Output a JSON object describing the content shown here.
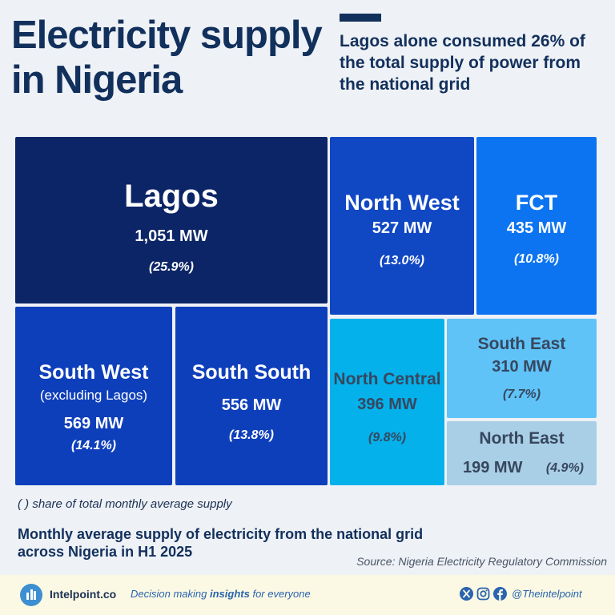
{
  "title_line1": "Electricity supply",
  "title_line2": "in Nigeria",
  "headline": "Lagos alone consumed 26% of the total supply of power from the national grid",
  "note": "( ) share of total monthly average supply",
  "subtitle_line1": "Monthly average supply of electricity from the national grid",
  "subtitle_line2": "across Nigeria in H1 2025",
  "source": "Source: Nigeria Electricity Regulatory Commission",
  "footer": {
    "brand": "Intelpoint.co",
    "tagline_pre": "Decision making ",
    "tagline_bold": "insights",
    "tagline_post": " for everyone",
    "handle": "@Theintelpoint"
  },
  "colors": {
    "title": "#12305c",
    "lagos": "#0b2566",
    "north_west": "#1047c3",
    "fct": "#0c74f1",
    "south_west": "#0e3fbb",
    "south_south": "#0e3fbb",
    "north_central": "#04b1eb",
    "south_east": "#5fc3f8",
    "north_east": "#a9cfe6"
  },
  "chart_data": {
    "type": "treemap",
    "unit": "MW",
    "items": [
      {
        "name": "Lagos",
        "value": 1051,
        "value_label": "1,051 MW",
        "share": "(25.9%)"
      },
      {
        "name": "North West",
        "value": 527,
        "value_label": "527 MW",
        "share": "(13.0%)"
      },
      {
        "name": "FCT",
        "value": 435,
        "value_label": "435 MW",
        "share": "(10.8%)"
      },
      {
        "name": "South West",
        "note": "(excluding Lagos)",
        "value": 569,
        "value_label": "569 MW",
        "share": "(14.1%)"
      },
      {
        "name": "South South",
        "value": 556,
        "value_label": "556 MW",
        "share": "(13.8%)"
      },
      {
        "name": "North Central",
        "value": 396,
        "value_label": "396 MW",
        "share": "(9.8%)"
      },
      {
        "name": "South East",
        "value": 310,
        "value_label": "310 MW",
        "share": "(7.7%)"
      },
      {
        "name": "North East",
        "value": 199,
        "value_label": "199 MW",
        "share": "(4.9%)"
      }
    ]
  }
}
